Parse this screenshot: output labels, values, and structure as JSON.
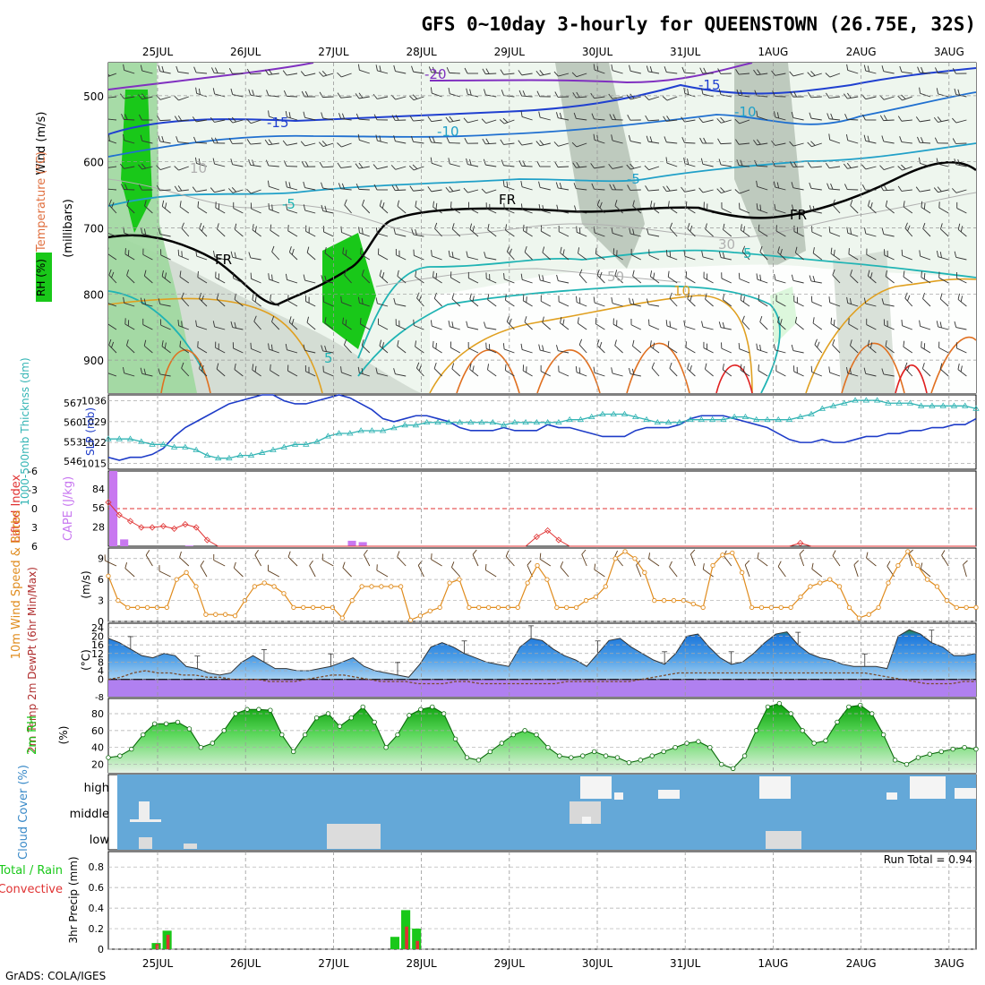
{
  "title": "GFS 0~10day 3-hourly for QUEENSTOWN (26.75E, 32S)",
  "footer": "GrADS: COLA/IGES",
  "dates": [
    "25JUL",
    "26JUL",
    "27JUL",
    "28JUL",
    "29JUL",
    "30JUL",
    "31JUL",
    "1AUG",
    "2AUG",
    "3AUG"
  ],
  "colors": {
    "rh_green": "#19c819",
    "rh_light": "#e6f5e6",
    "rh_grey": "#c0ccc0",
    "slp": "#1e3cc8",
    "thickness": "#32b4b4",
    "cape": "#c878f0",
    "lifted": "#e03232",
    "wind10": "#e08c1e",
    "cloud": "#64a8d8",
    "precip_total": "#19c819",
    "precip_conv": "#e03232",
    "temp_fill": "#1e78dc"
  },
  "chart_data": [
    {
      "type": "heatmap",
      "panel": "upper-air",
      "ylabel": "(millibars)",
      "side_labels": [
        "Wind (m/s)",
        "Temperature (°C)",
        "RH (%)"
      ],
      "yticks": [
        500,
        600,
        700,
        800,
        900
      ],
      "ylim": [
        450,
        950
      ],
      "contour_labels": [
        "-20",
        "-15",
        "-15",
        "-10",
        "-10",
        "-5",
        "-5",
        "FR",
        "FR",
        "FR",
        "5",
        "5",
        "10",
        "30",
        "50",
        "10"
      ]
    },
    {
      "type": "line",
      "panel": "slp-thickness",
      "left_label": "1000-500mb Thicknss (dm)",
      "right_label": "SLP (mb)",
      "left_ticks": [
        546,
        553,
        560,
        567
      ],
      "right_ticks": [
        1015,
        1022,
        1029,
        1036
      ],
      "series": [
        {
          "name": "SLP (mb)",
          "values": [
            1017,
            1016,
            1017,
            1017,
            1018,
            1020,
            1024,
            1027,
            1029,
            1031,
            1033,
            1035,
            1036,
            1037,
            1038,
            1038,
            1036,
            1035,
            1035,
            1036,
            1037,
            1038,
            1037,
            1035,
            1033,
            1030,
            1029,
            1030,
            1031,
            1031,
            1030,
            1029,
            1027,
            1026,
            1026,
            1026,
            1027,
            1026,
            1026,
            1026,
            1028,
            1027,
            1027,
            1026,
            1025,
            1024,
            1024,
            1024,
            1026,
            1027,
            1027,
            1027,
            1028,
            1030,
            1031,
            1031,
            1031,
            1030,
            1029,
            1028,
            1027,
            1025,
            1023,
            1022,
            1022,
            1023,
            1022,
            1022,
            1023,
            1024,
            1024,
            1025,
            1025,
            1026,
            1026,
            1027,
            1027,
            1028,
            1028,
            1030
          ]
        },
        {
          "name": "1000-500mb Thickness (dm)",
          "values": [
            554,
            554,
            554,
            553,
            552,
            552,
            551,
            551,
            550,
            548,
            547,
            547,
            548,
            548,
            549,
            550,
            551,
            552,
            552,
            553,
            555,
            556,
            556,
            557,
            557,
            557,
            558,
            559,
            559,
            560,
            560,
            560,
            560,
            560,
            560,
            560,
            559,
            560,
            560,
            560,
            560,
            560,
            561,
            561,
            562,
            563,
            563,
            563,
            562,
            561,
            560,
            560,
            560,
            561,
            561,
            561,
            561,
            562,
            562,
            561,
            561,
            561,
            561,
            562,
            563,
            565,
            566,
            567,
            568,
            568,
            568,
            567,
            567,
            567,
            566,
            566,
            566,
            566,
            566,
            565
          ]
        }
      ]
    },
    {
      "type": "bar",
      "panel": "cape-lifted-index",
      "left_label": "Lifted Index",
      "right_label": "CAPE (J/kg)",
      "li_ticks": [
        "6",
        "3",
        "0",
        "-3",
        "-6"
      ],
      "cape_ticks": [
        28,
        56,
        84
      ],
      "series": [
        {
          "name": "CAPE (J/kg)",
          "values": [
            110,
            10,
            0,
            0,
            0,
            0,
            0,
            1,
            0,
            0,
            0,
            0,
            0,
            0,
            0,
            0,
            0,
            0,
            0,
            0,
            0,
            0,
            8,
            6,
            0,
            0,
            0,
            0,
            0,
            0,
            0,
            0,
            0,
            0,
            0,
            0,
            0,
            0,
            0,
            0,
            0,
            0,
            0,
            0,
            0,
            0,
            0,
            0,
            0,
            0,
            0,
            0,
            0,
            0,
            0,
            0,
            0,
            0,
            0,
            0,
            0,
            0,
            0,
            0,
            0,
            0,
            0,
            0,
            0,
            0,
            0,
            0,
            0,
            0,
            0,
            0,
            0,
            0,
            0,
            0
          ]
        },
        {
          "name": "Lifted Index",
          "values": [
            -1,
            1,
            2,
            3,
            3,
            2.8,
            3.2,
            2.5,
            3,
            5,
            6.5,
            8,
            8,
            8,
            8,
            8,
            8,
            8,
            8,
            8,
            8,
            8,
            8,
            8,
            8,
            8,
            8,
            8,
            8,
            8,
            8,
            8,
            8,
            8,
            8,
            8,
            8,
            8,
            8,
            4.5,
            3.5,
            5,
            7,
            8,
            8,
            8,
            8,
            8,
            8,
            8,
            8,
            8,
            8,
            8,
            8,
            8,
            8,
            8,
            8,
            8,
            8,
            8,
            8,
            5.5,
            8,
            8,
            8,
            8,
            8,
            8,
            8,
            8,
            8,
            8,
            8,
            8,
            8,
            8,
            8,
            8
          ]
        }
      ]
    },
    {
      "type": "line",
      "panel": "wind10m",
      "left_label": "10m Wind Speed & Barbs",
      "right_label": "(m/s)",
      "yticks": [
        0,
        3,
        6,
        9
      ],
      "series": [
        {
          "name": "10m Wind Speed",
          "values": [
            6.5,
            3,
            2,
            2,
            2,
            2,
            2,
            6,
            7,
            5,
            1,
            1,
            1,
            0.8,
            3,
            5,
            5.5,
            5,
            4,
            2,
            2,
            2,
            2,
            2,
            0.5,
            3,
            5,
            5,
            5,
            5,
            5,
            0.2,
            0.8,
            1.5,
            2,
            5.5,
            6,
            2,
            2,
            2,
            2,
            2,
            2,
            5.5,
            8,
            6,
            2,
            2,
            2,
            3,
            3.5,
            5,
            9,
            10,
            9,
            7,
            3,
            3,
            3,
            3,
            2.5,
            2,
            8,
            9.5,
            9.8,
            7,
            2,
            2,
            2,
            2,
            2,
            3.5,
            5,
            5.5,
            6,
            5,
            2,
            0.5,
            1,
            2,
            5.5,
            8,
            10,
            8,
            6,
            5,
            3,
            2,
            2,
            2
          ]
        }
      ]
    },
    {
      "type": "area",
      "panel": "temperature",
      "left_label": "2m Temp 2m DewPt (6hr Min/Max)",
      "right_label": "(°C)",
      "yticks": [
        0,
        4,
        8,
        12,
        16,
        20,
        24
      ],
      "extra_tick": "-8",
      "series": [
        {
          "name": "2m Temp",
          "values": [
            19,
            17,
            14,
            11,
            10,
            12,
            11,
            6,
            5,
            3,
            2,
            3,
            8,
            11,
            8,
            5,
            5,
            4,
            4,
            5,
            6,
            8,
            10,
            6,
            4,
            3,
            2,
            1,
            7,
            15,
            17,
            15,
            12,
            10,
            8,
            7,
            6,
            15,
            19,
            18,
            14,
            11,
            9,
            6,
            12,
            18,
            19,
            15,
            12,
            9,
            7,
            12,
            20,
            21,
            15,
            10,
            7,
            8,
            12,
            17,
            21,
            22,
            16,
            12,
            10,
            9,
            7,
            6,
            6,
            6,
            5,
            20,
            23,
            21,
            17,
            15,
            11,
            11,
            12
          ]
        },
        {
          "name": "2m DewPt",
          "values": [
            0,
            1,
            3,
            4,
            3,
            3,
            2,
            2,
            1,
            1,
            0,
            0,
            0,
            -1,
            -1,
            -1,
            0,
            1,
            2,
            2,
            1,
            0,
            -1,
            -1,
            -1,
            -2,
            -2,
            -2,
            -1,
            -1,
            -2,
            -2,
            -2,
            -2,
            -2,
            -2,
            -2,
            -1,
            -1,
            -1,
            -1,
            -1,
            -1,
            0,
            1,
            2,
            3,
            3,
            3,
            3,
            3,
            3,
            3,
            3,
            3,
            3,
            3,
            3,
            3,
            3,
            3,
            3,
            2,
            1,
            0,
            -1,
            -2,
            -2,
            -2,
            -1,
            -1
          ]
        }
      ]
    },
    {
      "type": "area",
      "panel": "rh2m",
      "left_label": "2m RH",
      "right_label": "(%)",
      "yticks": [
        20,
        40,
        60,
        80
      ],
      "series": [
        {
          "name": "2m RH",
          "values": [
            28,
            30,
            38,
            55,
            68,
            68,
            70,
            62,
            40,
            45,
            60,
            80,
            85,
            85,
            84,
            55,
            35,
            55,
            75,
            80,
            65,
            75,
            88,
            70,
            40,
            55,
            78,
            85,
            88,
            80,
            50,
            28,
            25,
            35,
            45,
            55,
            60,
            55,
            40,
            30,
            28,
            30,
            35,
            30,
            28,
            22,
            25,
            30,
            35,
            40,
            45,
            47,
            40,
            20,
            15,
            30,
            60,
            88,
            92,
            80,
            60,
            45,
            48,
            70,
            88,
            90,
            80,
            55,
            25,
            20,
            28,
            32,
            35,
            38,
            40,
            38
          ]
        }
      ]
    },
    {
      "type": "bar",
      "panel": "cloud-cover",
      "left_label": "Cloud Cover (%)",
      "levels": [
        "high",
        "middle",
        "low"
      ]
    },
    {
      "type": "bar",
      "panel": "precip",
      "left_label": "Total / Rain Convective 3hr Precip (mm)",
      "yticks": [
        "0",
        "0.2",
        "0.4",
        "0.6",
        "0.8"
      ],
      "run_total": "Run Total = 0.94",
      "series": [
        {
          "name": "Total",
          "values": [
            {
              "t": 4,
              "v": 0.06
            },
            {
              "t": 5,
              "v": 0.18
            },
            {
              "t": 26,
              "v": 0.12
            },
            {
              "t": 27,
              "v": 0.38
            },
            {
              "t": 28,
              "v": 0.2
            }
          ]
        },
        {
          "name": "Convective",
          "values": [
            {
              "t": 4,
              "v": 0.05
            },
            {
              "t": 5,
              "v": 0.14
            },
            {
              "t": 27,
              "v": 0.22
            },
            {
              "t": 28,
              "v": 0.08
            }
          ]
        }
      ]
    }
  ]
}
